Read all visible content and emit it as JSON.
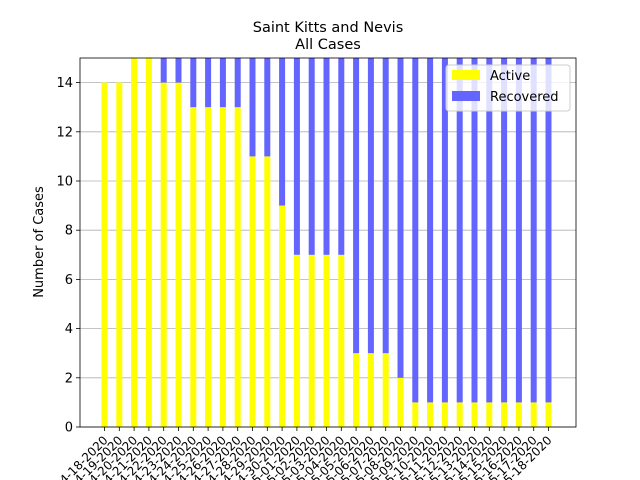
{
  "chart_data": {
    "type": "bar",
    "stacked": true,
    "title": "Saint Kitts and Nevis",
    "subtitle": "All Cases",
    "xlabel": "",
    "ylabel": "Number of Cases",
    "ylim": [
      0,
      15
    ],
    "yticks": [
      0,
      2,
      4,
      6,
      8,
      10,
      12,
      14
    ],
    "grid": "horizontal",
    "legend_placement": "top-right",
    "categories": [
      "4-18-2020",
      "4-19-2020",
      "4-20-2020",
      "4-21-2020",
      "4-22-2020",
      "4-23-2020",
      "4-24-2020",
      "4-25-2020",
      "4-26-2020",
      "4-27-2020",
      "4-28-2020",
      "4-29-2020",
      "4-30-2020",
      "5-01-2020",
      "5-02-2020",
      "5-03-2020",
      "5-04-2020",
      "5-05-2020",
      "5-06-2020",
      "5-07-2020",
      "5-08-2020",
      "5-09-2020",
      "5-10-2020",
      "5-11-2020",
      "5-12-2020",
      "5-13-2020",
      "5-14-2020",
      "5-15-2020",
      "5-16-2020",
      "5-17-2020",
      "5-18-2020"
    ],
    "series": [
      {
        "name": "Active",
        "color": "#ffff00",
        "values": [
          14,
          14,
          15,
          15,
          14,
          14,
          13,
          13,
          13,
          13,
          11,
          11,
          9,
          7,
          7,
          7,
          7,
          3,
          3,
          3,
          2,
          1,
          1,
          1,
          1,
          1,
          1,
          1,
          1,
          1,
          1
        ]
      },
      {
        "name": "Recovered",
        "color": "#6464ff",
        "values": [
          0,
          0,
          0,
          0,
          1,
          1,
          2,
          2,
          2,
          2,
          4,
          4,
          6,
          8,
          8,
          8,
          8,
          12,
          12,
          12,
          13,
          14,
          14,
          14,
          14,
          14,
          14,
          14,
          14,
          14,
          14
        ]
      }
    ]
  }
}
